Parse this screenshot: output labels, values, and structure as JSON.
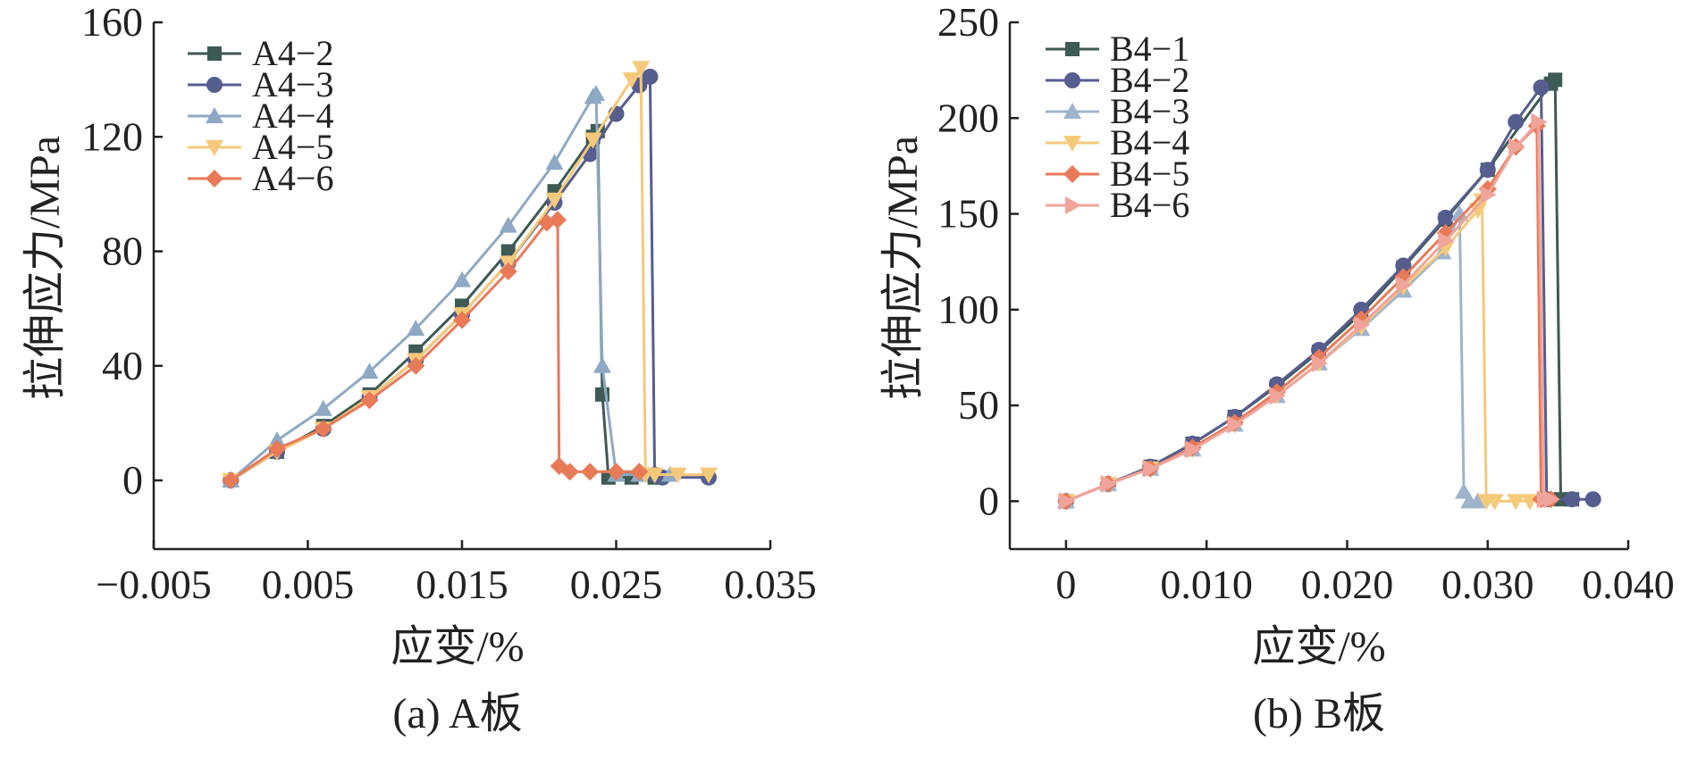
{
  "chart_data": [
    {
      "type": "line",
      "caption": "(a) A板",
      "xlabel": "应变/%",
      "ylabel": "拉伸应力/MPa",
      "xlim": [
        -0.005,
        0.035
      ],
      "ylim": [
        -24,
        160
      ],
      "xticks": [
        -0.005,
        0.005,
        0.015,
        0.025,
        0.035
      ],
      "xtick_labels": [
        "−0.005",
        "0.005",
        "0.015",
        "0.025",
        "0.035"
      ],
      "yticks": [
        0,
        40,
        80,
        120,
        160
      ],
      "ytick_labels": [
        "0",
        "40",
        "80",
        "120",
        "160"
      ],
      "legend_position": "top-left",
      "series": [
        {
          "name": "A4−2",
          "color": "#3d5a55",
          "marker": "square",
          "x": [
            0,
            0.003,
            0.006,
            0.009,
            0.012,
            0.015,
            0.018,
            0.021,
            0.0235,
            0.0238,
            0.0241,
            0.0245,
            0.026,
            0.0275
          ],
          "y": [
            0,
            10,
            19,
            30,
            45,
            61,
            80,
            101,
            120,
            122,
            30,
            1,
            1,
            1
          ]
        },
        {
          "name": "A4−3",
          "color": "#565d8f",
          "marker": "circle",
          "x": [
            0,
            0.003,
            0.006,
            0.009,
            0.012,
            0.015,
            0.018,
            0.021,
            0.0233,
            0.025,
            0.0265,
            0.0272,
            0.0275,
            0.028,
            0.031
          ],
          "y": [
            0,
            10,
            18,
            29,
            42,
            58,
            76,
            97,
            114,
            128,
            138,
            141,
            2,
            1,
            1
          ]
        },
        {
          "name": "A4−4",
          "color": "#8fa9c4",
          "marker": "triangle-up",
          "x": [
            0,
            0.003,
            0.006,
            0.009,
            0.012,
            0.015,
            0.018,
            0.021,
            0.0235,
            0.0237,
            0.0241,
            0.025,
            0.0265,
            0.0285
          ],
          "y": [
            0,
            14,
            25,
            38,
            53,
            70,
            89,
            111,
            134,
            135,
            40,
            2,
            2,
            2
          ]
        },
        {
          "name": "A4−5",
          "color": "#f5c97a",
          "marker": "triangle-down",
          "x": [
            0,
            0.003,
            0.006,
            0.009,
            0.012,
            0.015,
            0.018,
            0.021,
            0.0235,
            0.026,
            0.0266,
            0.0269,
            0.0275,
            0.029,
            0.031
          ],
          "y": [
            0,
            10,
            18,
            29,
            42,
            58,
            76,
            98,
            119,
            140,
            144,
            2,
            2,
            2,
            2
          ]
        },
        {
          "name": "A4−6",
          "color": "#e87a58",
          "marker": "diamond",
          "x": [
            0,
            0.003,
            0.006,
            0.009,
            0.012,
            0.015,
            0.018,
            0.0205,
            0.0212,
            0.0213,
            0.022,
            0.0233,
            0.025,
            0.0265
          ],
          "y": [
            0,
            11,
            18,
            28,
            40,
            56,
            73,
            90,
            91,
            5,
            3,
            3,
            3,
            3
          ]
        }
      ]
    },
    {
      "type": "line",
      "caption": "(b) B板",
      "xlabel": "应变/%",
      "ylabel": "拉伸应力/MPa",
      "xlim": [
        -0.004,
        0.04
      ],
      "ylim": [
        -25,
        250
      ],
      "xticks": [
        0,
        0.01,
        0.02,
        0.03,
        0.04
      ],
      "xtick_labels": [
        "0",
        "0.010",
        "0.020",
        "0.030",
        "0.040"
      ],
      "yticks": [
        0,
        50,
        100,
        150,
        200,
        250
      ],
      "ytick_labels": [
        "0",
        "50",
        "100",
        "150",
        "200",
        "250"
      ],
      "legend_position": "top-left",
      "series": [
        {
          "name": "B4−1",
          "color": "#3d5a55",
          "marker": "square",
          "x": [
            0,
            0.003,
            0.006,
            0.009,
            0.012,
            0.015,
            0.018,
            0.021,
            0.024,
            0.027,
            0.03,
            0.0345,
            0.0348,
            0.0352,
            0.036
          ],
          "y": [
            0,
            9,
            18,
            30,
            44,
            60,
            78,
            98,
            122,
            147,
            173,
            218,
            220,
            1,
            1
          ]
        },
        {
          "name": "B4−2",
          "color": "#565d8f",
          "marker": "circle",
          "x": [
            0,
            0.003,
            0.006,
            0.009,
            0.012,
            0.015,
            0.018,
            0.021,
            0.024,
            0.027,
            0.03,
            0.032,
            0.0338,
            0.0342,
            0.036,
            0.0375
          ],
          "y": [
            0,
            9,
            18,
            30,
            44,
            61,
            79,
            100,
            123,
            148,
            173,
            198,
            216,
            1,
            1,
            1
          ]
        },
        {
          "name": "B4−3",
          "color": "#9db4cc",
          "marker": "triangle-up",
          "x": [
            0,
            0.003,
            0.006,
            0.009,
            0.012,
            0.015,
            0.018,
            0.021,
            0.024,
            0.0268,
            0.028,
            0.0283,
            0.0287,
            0.0293
          ],
          "y": [
            0,
            9,
            17,
            27,
            40,
            55,
            72,
            90,
            110,
            130,
            150,
            5,
            0,
            0
          ]
        },
        {
          "name": "B4−4",
          "color": "#f5c97a",
          "marker": "triangle-down",
          "x": [
            0,
            0.003,
            0.006,
            0.009,
            0.012,
            0.015,
            0.018,
            0.021,
            0.024,
            0.027,
            0.0293,
            0.0296,
            0.0299,
            0.0305,
            0.032,
            0.033
          ],
          "y": [
            0,
            9,
            17,
            27,
            40,
            55,
            72,
            91,
            112,
            132,
            152,
            157,
            0,
            0,
            0,
            0
          ]
        },
        {
          "name": "B4−5",
          "color": "#e87a58",
          "marker": "diamond",
          "x": [
            0,
            0.003,
            0.006,
            0.009,
            0.012,
            0.015,
            0.018,
            0.021,
            0.024,
            0.027,
            0.03,
            0.032,
            0.0335,
            0.0338,
            0.0345
          ],
          "y": [
            0,
            9,
            17,
            28,
            41,
            57,
            75,
            95,
            117,
            140,
            163,
            185,
            196,
            1,
            1
          ]
        },
        {
          "name": "B4−6",
          "color": "#f0a49a",
          "marker": "triangle-right",
          "x": [
            0,
            0.003,
            0.006,
            0.009,
            0.012,
            0.015,
            0.018,
            0.021,
            0.024,
            0.027,
            0.03,
            0.032,
            0.0336,
            0.034,
            0.0345
          ],
          "y": [
            0,
            9,
            17,
            27,
            40,
            55,
            72,
            92,
            113,
            136,
            160,
            185,
            198,
            1,
            1
          ]
        }
      ]
    }
  ]
}
